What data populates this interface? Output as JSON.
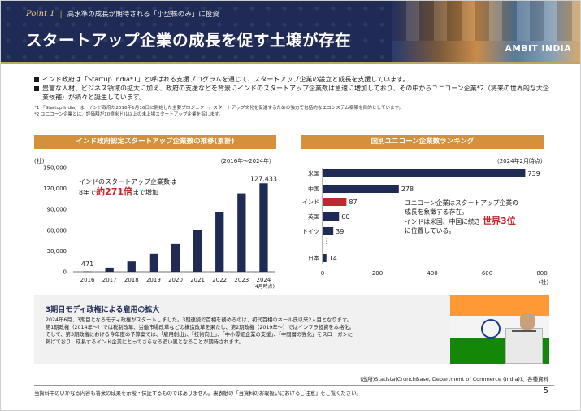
{
  "header": {
    "point_label": "Point 1",
    "point_subtitle": "高水準の成長が期待される「小型株のみ」に投資",
    "title": "スタートアップ企業の成長を促す土壌が存在",
    "brand": "AMBIT INDIA"
  },
  "bullets": [
    "インド政府は「Startup India*1」と呼ばれる支援プログラムを通じて、スタートアップ企業の設立と成長を支援しています。",
    "豊富な人材、ビジネス領域の拡大に加え、政府の支援などを背景にインドのスタートアップ企業数は急速に増加しており、その中からユニコーン企業*2（将来の世界的な大企業候補）が続々と誕生しています。"
  ],
  "notes": [
    "*1 「Startup India」は、インド政府が2016年1月16日に開始した主要プロジェクト。スタートアップ文化を促進するための強力で包括的なエコシステム構築を目的としています。",
    "*2 ユニコーン企業とは、評価額が10億米ドル以上の未上場スタートアップ企業を指します。"
  ],
  "left_panel": {
    "title": "インド政府認定スタートアップ企業数の推移(累計)",
    "period": "（2016年～2024年）",
    "unit": "(社)",
    "as_of": "(4月時点)",
    "callout_line1": "インドのスタートアップ企業数は",
    "callout_pre": "8年で",
    "callout_highlight": "約271倍",
    "callout_post": "まで増加"
  },
  "right_panel": {
    "title": "国別ユニコーン企業数ランキング",
    "as_of": "（2024年2月時点）",
    "unit": "(社)",
    "callout_line1": "ユニコーン企業はスタートアップ企業の",
    "callout_line2": "成長を象徴する存在。",
    "callout_pre": "インドは米国、中国に続き",
    "callout_highlight": "世界3位",
    "callout_line4": "に位置している。",
    "ellipsis": "⋮"
  },
  "chart_data": [
    {
      "type": "bar",
      "title": "インド政府認定スタートアップ企業数の推移(累計)",
      "categories": [
        "2016",
        "2017",
        "2018",
        "2019",
        "2020",
        "2021",
        "2022",
        "2023",
        "2024"
      ],
      "values": [
        471,
        6000,
        15000,
        26000,
        40000,
        60000,
        86000,
        113000,
        127433
      ],
      "data_labels": {
        "2016": "471",
        "2024": "127,433"
      },
      "y_ticks": [
        "0",
        "30,000",
        "60,000",
        "90,000",
        "120,000",
        "150,000"
      ],
      "ylim": [
        0,
        150000
      ],
      "ylabel": "(社)",
      "grid": false,
      "color": "#1f2a55"
    },
    {
      "type": "bar",
      "orientation": "horizontal",
      "title": "国別ユニコーン企業数ランキング",
      "categories": [
        "米国",
        "中国",
        "インド",
        "英国",
        "ドイツ",
        "日本"
      ],
      "values": [
        739,
        278,
        87,
        60,
        39,
        14
      ],
      "x_ticks": [
        "0",
        "200",
        "400",
        "600",
        "800"
      ],
      "xlim": [
        0,
        800
      ],
      "xlabel": "(社)",
      "grid": false,
      "colors": {
        "default": "#1f2a55",
        "highlight": "#c0282d"
      },
      "highlight_category": "インド"
    }
  ],
  "box": {
    "title": "3期目モディ政権による雇用の拡大",
    "lines": [
      "2024年6月、3期目となるモディ政権がスタートしました。3期連続で首相を務めるのは、初代首相のネール氏以来2人目となります。",
      "第1期政権（2014年～）では税制改革、労働市場改革などの構造改革を果たし、第2期政権（2019年～）ではインフラ投資を本格化。",
      "そして、第3期政権における今年度の予算案では、「雇用創出」、「技術向上」、「中小零細企業の支援」、「中間層の強化」をスローガンに",
      "掲げており、成長するインド企業にとってさらなる追い風となることが期待されます。"
    ]
  },
  "source": "(出所)Statista(CrunchBase, Department of Commerce (India))、各種資料",
  "footer": {
    "disclaimer": "当資料中のいかなる内容も将来の成果を示唆・保証するものではありません。裏表紙の「当資料のお取扱いにおけるご注意」をご覧ください。",
    "page": "5"
  }
}
